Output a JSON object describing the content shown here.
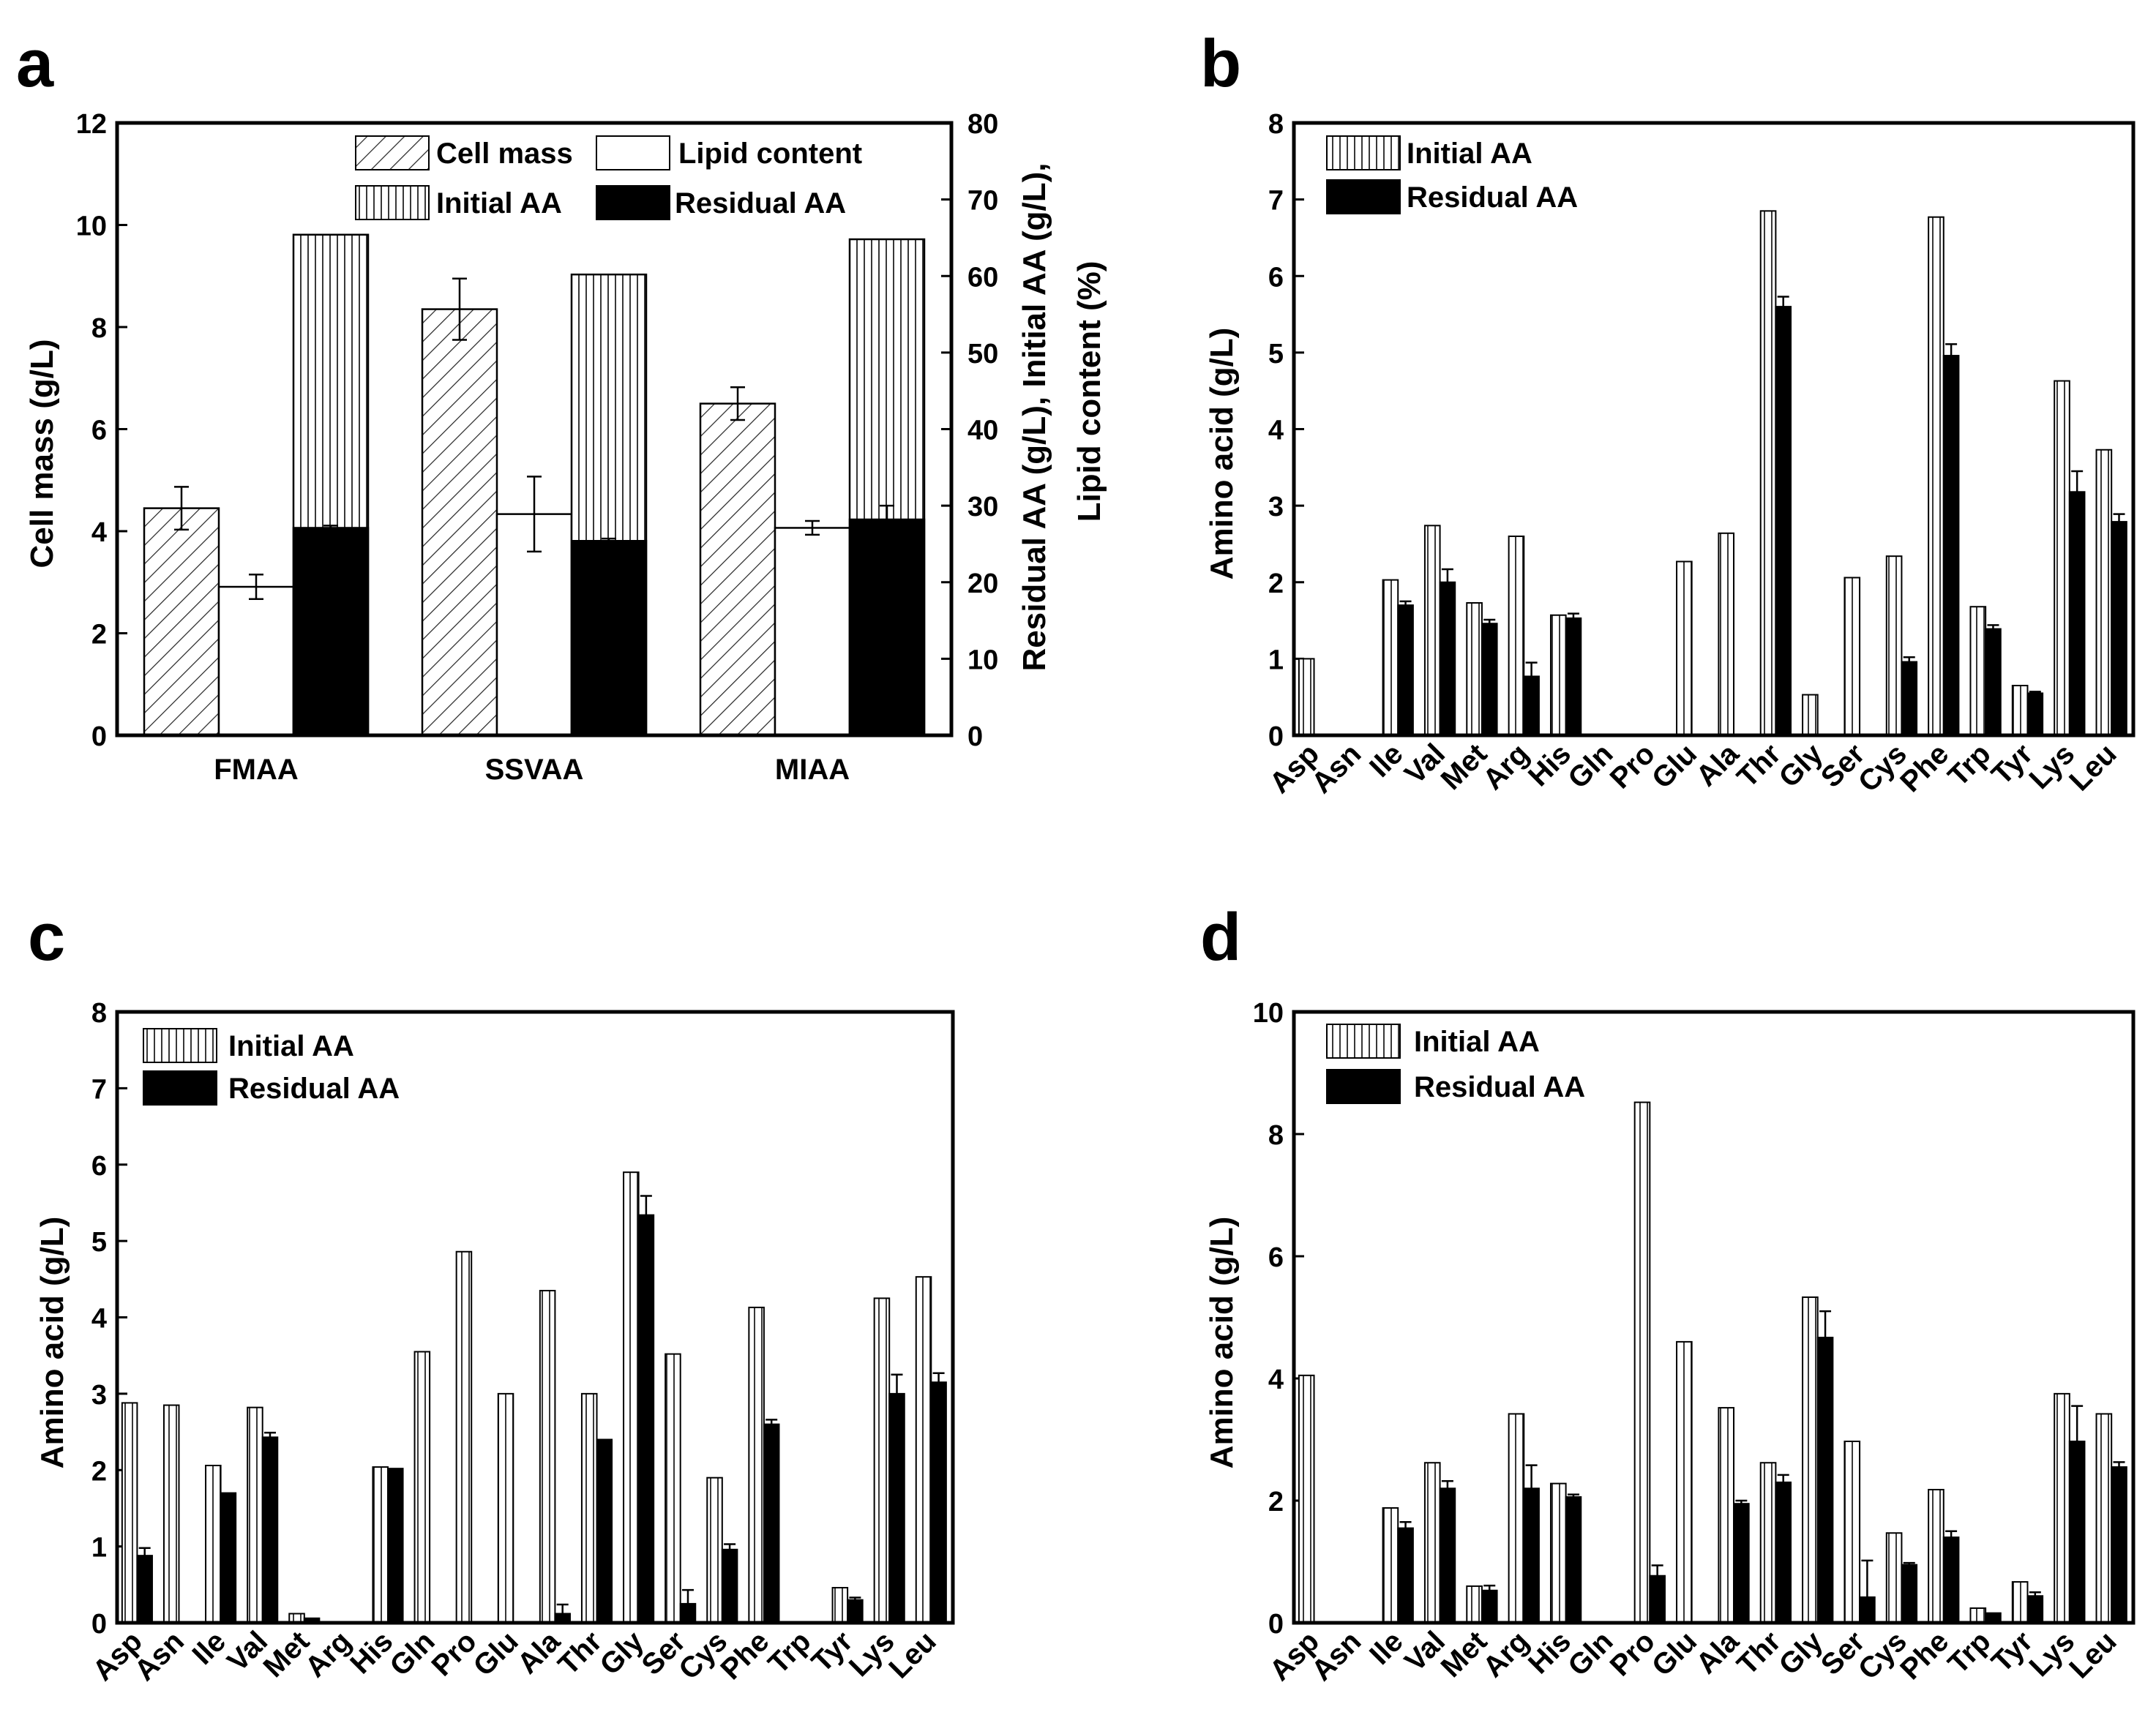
{
  "chart_data": [
    {
      "panel": "a",
      "type": "bar",
      "title": "",
      "xlabel": "",
      "ylabel": "Cell mass (g/L)",
      "y2label_lines": [
        "Residual AA (g/L),  Initial AA (g/L),",
        "Lipid content (%)"
      ],
      "ylim": [
        0,
        12
      ],
      "y2lim": [
        0,
        80
      ],
      "yticks": [
        0,
        2,
        4,
        6,
        8,
        10,
        12
      ],
      "y2ticks": [
        0,
        10,
        20,
        30,
        40,
        50,
        60,
        70,
        80
      ],
      "categories": [
        "FMAA",
        "SSVAA",
        "MIAA"
      ],
      "series": [
        {
          "name": "Cell mass",
          "axis": "left",
          "pattern": "diag",
          "values": [
            4.45,
            8.35,
            6.5
          ],
          "errors": [
            0.42,
            0.6,
            0.32
          ]
        },
        {
          "name": "Lipid content",
          "axis": "right",
          "pattern": "open",
          "values": [
            19.4,
            28.9,
            27.1
          ],
          "errors": [
            1.6,
            4.9,
            0.9
          ]
        },
        {
          "name": "Initial AA",
          "axis": "right",
          "pattern": "vert",
          "values": [
            65.4,
            60.2,
            64.8
          ],
          "errors": [
            0,
            0,
            0
          ]
        },
        {
          "name": "Residual AA",
          "axis": "right",
          "pattern": "solid",
          "values": [
            27.1,
            25.4,
            28.2
          ],
          "errors": [
            0.3,
            0.3,
            1.8
          ]
        }
      ],
      "stacked_pair": [
        "Initial AA",
        "Residual AA"
      ],
      "legend": [
        "Cell mass",
        "Lipid content",
        "Initial AA",
        "Residual AA"
      ]
    },
    {
      "panel": "b",
      "type": "bar",
      "title": "",
      "xlabel": "",
      "ylabel": "Amino acid (g/L)",
      "ylim": [
        0,
        8
      ],
      "yticks": [
        0,
        1,
        2,
        3,
        4,
        5,
        6,
        7,
        8
      ],
      "categories": [
        "Asp",
        "Asn",
        "Ile",
        "Val",
        "Met",
        "Arg",
        "His",
        "Gln",
        "Pro",
        "Glu",
        "Ala",
        "Thr",
        "Gly",
        "Ser",
        "Cys",
        "Phe",
        "Trp",
        "Tyr",
        "Lys",
        "Leu"
      ],
      "series": [
        {
          "name": "Initial AA",
          "values": [
            1.0,
            0,
            2.03,
            2.74,
            1.73,
            2.6,
            1.57,
            0,
            0,
            2.27,
            2.64,
            6.85,
            0.53,
            2.06,
            2.34,
            6.77,
            1.68,
            0.65,
            4.63,
            3.73
          ],
          "errors": [
            0,
            0,
            0,
            0,
            0,
            0,
            0,
            0,
            0,
            0,
            0,
            0,
            0,
            0,
            0,
            0,
            0,
            0,
            0,
            0
          ]
        },
        {
          "name": "Residual AA",
          "values": [
            0,
            0,
            1.7,
            2.0,
            1.46,
            0.77,
            1.53,
            0,
            0,
            0,
            0,
            5.6,
            0,
            0,
            0.96,
            4.96,
            1.39,
            0.55,
            3.18,
            2.79
          ],
          "errors": [
            0,
            0,
            0.05,
            0.17,
            0.05,
            0.18,
            0.06,
            0,
            0,
            0,
            0,
            0.13,
            0,
            0,
            0.06,
            0.15,
            0.05,
            0.02,
            0.27,
            0.1
          ]
        }
      ],
      "legend": [
        "Initial AA",
        "Residual AA"
      ]
    },
    {
      "panel": "c",
      "type": "bar",
      "title": "",
      "xlabel": "",
      "ylabel": "Amino acid (g/L)",
      "ylim": [
        0,
        8
      ],
      "yticks": [
        0,
        1,
        2,
        3,
        4,
        5,
        6,
        7,
        8
      ],
      "categories": [
        "Asp",
        "Asn",
        "Ile",
        "Val",
        "Met",
        "Arg",
        "His",
        "Gln",
        "Pro",
        "Glu",
        "Ala",
        "Thr",
        "Gly",
        "Ser",
        "Cys",
        "Phe",
        "Trp",
        "Tyr",
        "Lys",
        "Leu"
      ],
      "series": [
        {
          "name": "Initial AA",
          "values": [
            2.88,
            2.85,
            2.06,
            2.82,
            0.12,
            0,
            2.04,
            3.55,
            4.86,
            3.0,
            4.35,
            3.0,
            5.9,
            3.52,
            1.9,
            4.13,
            0,
            0.46,
            4.25,
            4.53
          ],
          "errors": [
            0,
            0,
            0,
            0,
            0,
            0,
            0,
            0,
            0,
            0,
            0,
            0,
            0,
            0,
            0,
            0,
            0,
            0,
            0,
            0
          ]
        },
        {
          "name": "Residual AA",
          "values": [
            0.88,
            0,
            1.7,
            2.43,
            0.06,
            0,
            2.02,
            0,
            0,
            0,
            0.12,
            2.4,
            5.34,
            0.25,
            0.96,
            2.6,
            0,
            0.3,
            3.0,
            3.15
          ],
          "errors": [
            0.1,
            0,
            0,
            0.06,
            0,
            0,
            0,
            0,
            0,
            0,
            0.12,
            0,
            0.25,
            0.18,
            0.07,
            0.06,
            0,
            0.03,
            0.25,
            0.12
          ]
        }
      ],
      "legend": [
        "Initial AA",
        "Residual AA"
      ]
    },
    {
      "panel": "d",
      "type": "bar",
      "title": "",
      "xlabel": "",
      "ylabel": "Amino acid (g/L)",
      "ylim": [
        0,
        10
      ],
      "yticks": [
        0,
        2,
        4,
        6,
        8,
        10
      ],
      "categories": [
        "Asp",
        "Asn",
        "Ile",
        "Val",
        "Met",
        "Arg",
        "His",
        "Gln",
        "Pro",
        "Glu",
        "Ala",
        "Thr",
        "Gly",
        "Ser",
        "Cys",
        "Phe",
        "Trp",
        "Tyr",
        "Lys",
        "Leu"
      ],
      "series": [
        {
          "name": "Initial AA",
          "values": [
            4.05,
            0,
            1.88,
            2.62,
            0.6,
            3.42,
            2.28,
            0,
            8.52,
            4.6,
            3.52,
            2.62,
            5.33,
            2.97,
            1.47,
            2.18,
            0.24,
            0.67,
            3.75,
            3.42
          ],
          "errors": [
            0,
            0,
            0,
            0,
            0,
            0,
            0,
            0,
            0,
            0,
            0,
            0,
            0,
            0,
            0,
            0,
            0,
            0,
            0,
            0
          ]
        },
        {
          "name": "Residual AA",
          "values": [
            0,
            0,
            1.55,
            2.2,
            0.53,
            2.2,
            2.06,
            0,
            0.77,
            0,
            1.95,
            2.3,
            4.67,
            0.42,
            0.95,
            1.4,
            0.16,
            0.44,
            2.97,
            2.55
          ],
          "errors": [
            0,
            0,
            0.1,
            0.12,
            0.08,
            0.38,
            0.04,
            0,
            0.17,
            0,
            0.05,
            0.12,
            0.43,
            0.6,
            0.03,
            0.1,
            0,
            0.06,
            0.58,
            0.08
          ]
        }
      ],
      "legend": [
        "Initial AA",
        "Residual AA"
      ]
    }
  ]
}
